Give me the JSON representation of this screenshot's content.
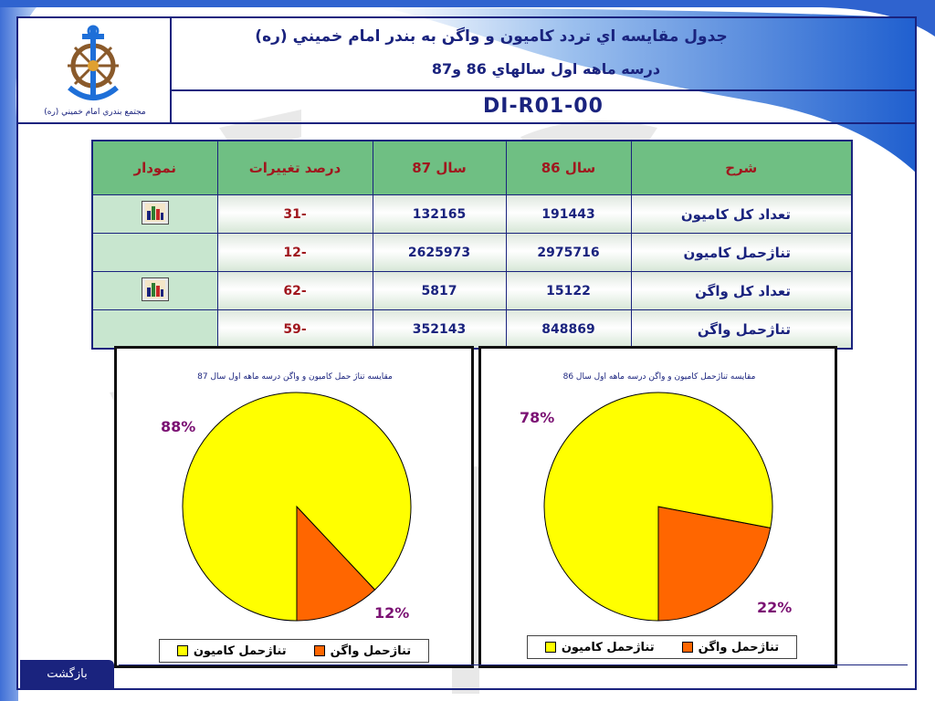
{
  "header": {
    "title_line1": "جدول مقايسه اي تردد كاميون و واگن به بندر امام خميني (ره)",
    "title_line2": "درسه ماهه اول سالهاي 86 و87",
    "doc_code": "DI-R01-00",
    "logo_caption": "مجتمع بندري امام خميني (ره)"
  },
  "colors": {
    "navy": "#1a237e",
    "header_green": "#6fbf83",
    "red_text": "#a0171e",
    "pie_yellow": "#ffff00",
    "pie_orange": "#ff6600",
    "pct_purple": "#7b1273"
  },
  "table": {
    "columns": [
      "نمودار",
      "درصد تغييرات",
      "سال 87",
      "سال 86",
      "شرح"
    ],
    "rows": [
      {
        "chart": "chart-icon",
        "change": "-31",
        "y87": "132165",
        "y86": "191443",
        "desc": "تعداد كل كاميون",
        "has_chart": true
      },
      {
        "chart": "",
        "change": "-12",
        "y87": "2625973",
        "y86": "2975716",
        "desc": "تناژحمل كاميون",
        "has_chart": false
      },
      {
        "chart": "chart-icon",
        "change": "-62",
        "y87": "5817",
        "y86": "15122",
        "desc": "تعداد كل واگن",
        "has_chart": true
      },
      {
        "chart": "",
        "change": "-59",
        "y87": "352143",
        "y86": "848869",
        "desc": "تناژحمل واگن",
        "has_chart": false
      }
    ]
  },
  "chart_data": [
    {
      "type": "pie",
      "title": "مقايسه تناژ حمل كاميون و واگن درسه ماهه اول سال 87",
      "categories": [
        "تناژحمل كاميون",
        "تناژحمل واگن"
      ],
      "values": [
        88,
        12
      ],
      "labels": [
        "88%",
        "12%"
      ],
      "colors": [
        "#ffff00",
        "#ff6600"
      ],
      "legend_placement": "bottom"
    },
    {
      "type": "pie",
      "title": "مقايسه تناژحمل كاميون و واگن درسه ماهه اول سال 86",
      "categories": [
        "تناژحمل كاميون",
        "تناژحمل واگن"
      ],
      "values": [
        78,
        22
      ],
      "labels": [
        "78%",
        "22%"
      ],
      "colors": [
        "#ffff00",
        "#ff6600"
      ],
      "legend_placement": "bottom"
    }
  ],
  "nav": {
    "back_label": "بازگشت"
  }
}
